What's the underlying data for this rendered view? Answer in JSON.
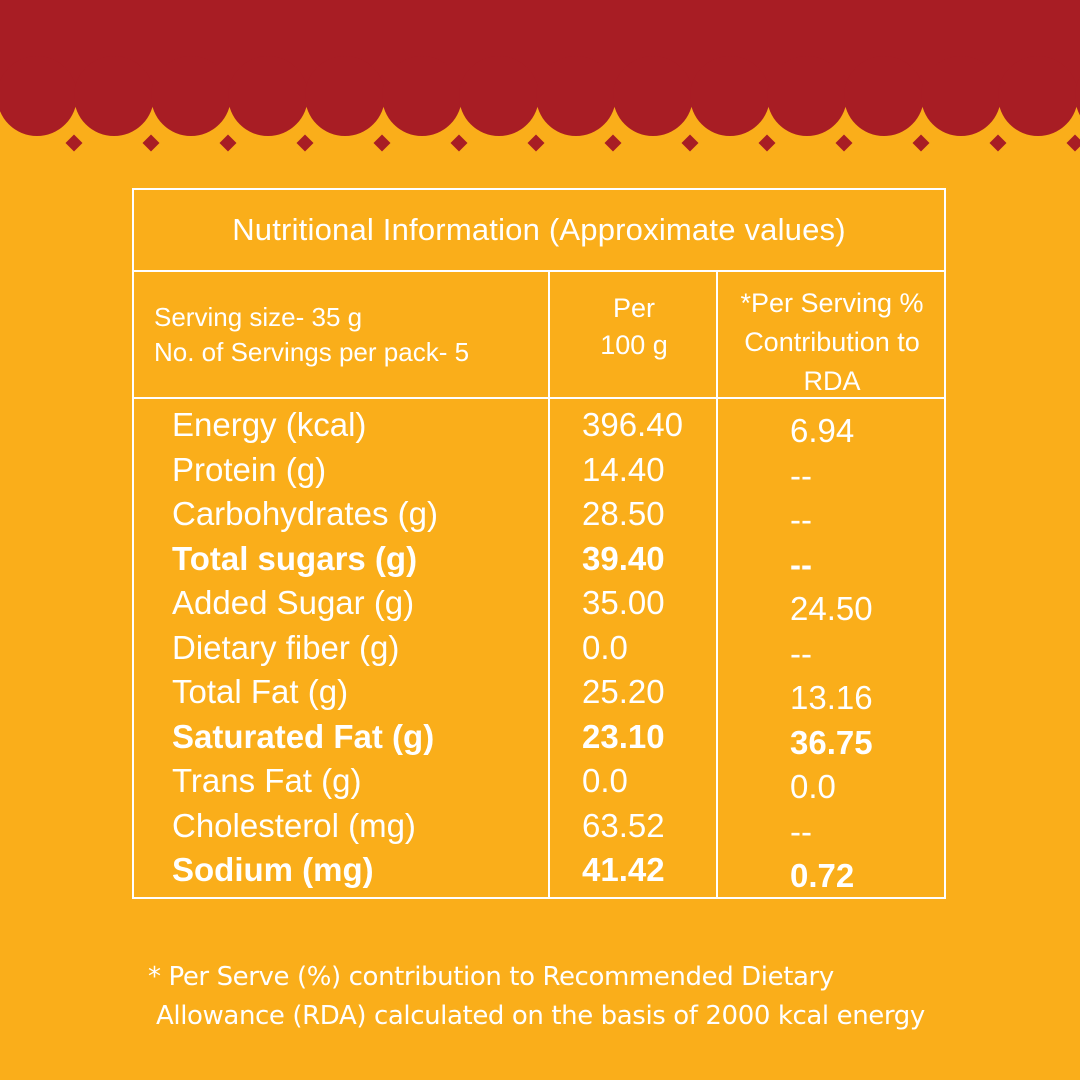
{
  "colors": {
    "background": "#FAAE1A",
    "banner": "#A81D24",
    "text": "#FFFFFF"
  },
  "table": {
    "title": "Nutritional Information (Approximate values)",
    "serving_size": "Serving size- 35 g",
    "servings_per_pack": "No. of Servings per pack- 5",
    "col_per_line1": "Per",
    "col_per_line2": "100 g",
    "col_rda_line1": "*Per Serving %",
    "col_rda_line2": "Contribution to",
    "col_rda_line3": "RDA",
    "rows": [
      {
        "name": "Energy (kcal)",
        "per100": "396.40",
        "rda": "6.94",
        "bold": false
      },
      {
        "name": "Protein (g)",
        "per100": "14.40",
        "rda": "--",
        "bold": false
      },
      {
        "name": "Carbohydrates (g)",
        "per100": "28.50",
        "rda": "--",
        "bold": false
      },
      {
        "name": "Total sugars (g)",
        "per100": "39.40",
        "rda": "--",
        "bold": true
      },
      {
        "name": "Added Sugar (g)",
        "per100": "35.00",
        "rda": "24.50",
        "bold": false
      },
      {
        "name": "Dietary fiber (g)",
        "per100": "0.0",
        "rda": "--",
        "bold": false
      },
      {
        "name": "Total Fat (g)",
        "per100": "25.20",
        "rda": "13.16",
        "bold": false
      },
      {
        "name": "Saturated Fat (g)",
        "per100": "23.10",
        "rda": "36.75",
        "bold": true
      },
      {
        "name": "Trans Fat (g)",
        "per100": "0.0",
        "rda": "0.0",
        "bold": false
      },
      {
        "name": "Cholesterol (mg)",
        "per100": "63.52",
        "rda": "--",
        "bold": false
      },
      {
        "name": "Sodium (mg)",
        "per100": "41.42",
        "rda": "0.72",
        "bold": true
      }
    ]
  },
  "footnote": {
    "line1": "* Per Serve (%) contribution to Recommended Dietary",
    "line2": "Allowance (RDA) calculated on the basis of 2000 kcal energy"
  }
}
